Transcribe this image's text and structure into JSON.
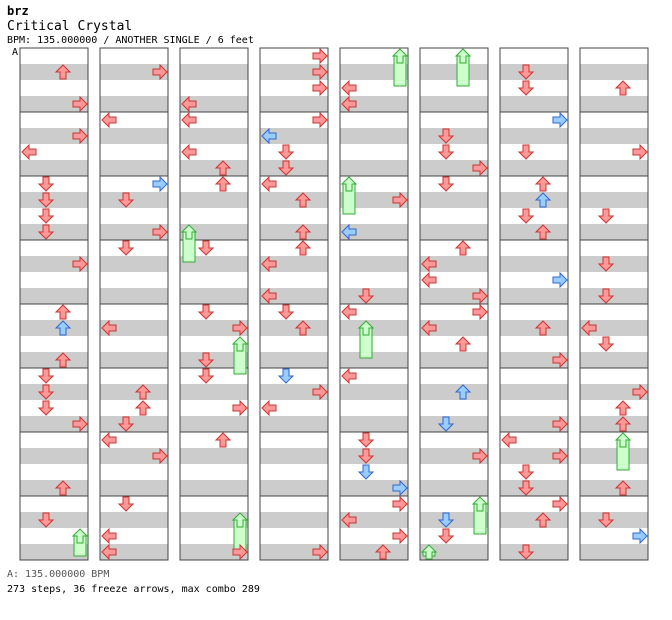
{
  "song": {
    "artist": "brz",
    "title": "Critical Crystal",
    "meta": "BPM: 135.000000 / ANOTHER SINGLE / 6 feet",
    "section_marker": "A"
  },
  "footer": {
    "bpm_line": "A: 135.000000 BPM",
    "stats_line": "273 steps, 36 freeze arrows, max combo 289"
  },
  "colors": {
    "stripe": "#cccccc",
    "lane_bg": "#ffffff",
    "border": "#444444",
    "arrow_red": "#ff9999",
    "arrow_red_stroke": "#cc3333",
    "arrow_blue": "#99ccff",
    "arrow_blue_stroke": "#3366cc",
    "freeze_green": "#ccffcc",
    "freeze_green_stroke": "#33aa33"
  },
  "chart_data": {
    "type": "stepchart",
    "columns": 8,
    "measures_per_column": 8,
    "lanes": [
      "left",
      "down",
      "up",
      "right"
    ]
  }
}
